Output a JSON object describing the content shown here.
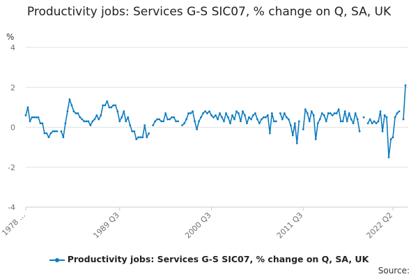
{
  "title": "Productivity jobs: Services G-S SIC07, % change on Q, SA, UK",
  "source_label": "Source:",
  "chart_data": {
    "type": "line",
    "title": "Productivity jobs: Services G-S SIC07, % change on Q, SA, UK",
    "ylabel": "%",
    "ylim": [
      -4,
      4
    ],
    "yticks": [
      4,
      2,
      0,
      -2,
      -4
    ],
    "x_tick_labels": [
      "1978 ...",
      "1989 Q3",
      "2000 Q3",
      "2011 Q3",
      "2022 Q2"
    ],
    "x_tick_positions": [
      0,
      45,
      89,
      133,
      176
    ],
    "grid": true,
    "legend_position": "bottom",
    "series": [
      {
        "name": "Productivity jobs: Services G-S SIC07, % change on Q, SA, UK",
        "color": "#0c7bbf",
        "values": [
          0.6,
          1.0,
          0.3,
          0.5,
          0.5,
          0.5,
          0.5,
          0.2,
          0.2,
          -0.3,
          -0.3,
          -0.5,
          -0.3,
          -0.2,
          -0.2,
          -0.2,
          null,
          -0.2,
          -0.5,
          0.2,
          0.8,
          1.4,
          1.1,
          0.8,
          0.7,
          0.7,
          0.5,
          0.4,
          0.3,
          0.3,
          0.3,
          0.1,
          0.3,
          0.4,
          0.6,
          0.4,
          0.6,
          1.1,
          1.1,
          1.3,
          1.0,
          1.0,
          1.1,
          1.1,
          0.8,
          0.3,
          0.5,
          0.8,
          0.3,
          0.5,
          0.1,
          -0.2,
          -0.2,
          -0.6,
          -0.5,
          -0.5,
          -0.5,
          0.1,
          -0.5,
          -0.3,
          null,
          0.1,
          0.3,
          0.4,
          0.4,
          0.3,
          0.3,
          0.7,
          0.4,
          0.4,
          0.5,
          0.5,
          0.3,
          0.3,
          null,
          0.1,
          0.2,
          0.4,
          0.7,
          0.7,
          0.8,
          0.3,
          -0.1,
          0.3,
          0.5,
          0.7,
          0.8,
          0.7,
          0.8,
          0.6,
          0.5,
          0.6,
          0.4,
          0.7,
          0.5,
          0.3,
          0.7,
          0.5,
          0.2,
          0.6,
          0.4,
          0.8,
          0.7,
          0.3,
          0.8,
          0.6,
          0.2,
          0.5,
          0.4,
          0.6,
          0.7,
          0.4,
          0.2,
          0.4,
          0.5,
          0.5,
          0.6,
          -0.3,
          0.7,
          0.3,
          0.3,
          null,
          0.7,
          0.4,
          0.7,
          0.5,
          0.4,
          0.1,
          -0.4,
          0.2,
          -0.8,
          0.3,
          null,
          -0.1,
          0.9,
          0.7,
          0.3,
          0.8,
          0.6,
          -0.6,
          0.2,
          0.4,
          0.7,
          0.6,
          0.3,
          0.7,
          0.7,
          0.6,
          0.7,
          0.7,
          0.9,
          0.3,
          0.3,
          0.8,
          0.3,
          0.7,
          0.4,
          0.2,
          0.7,
          0.4,
          -0.2,
          null,
          0.5,
          null,
          0.2,
          0.4,
          0.2,
          0.3,
          0.2,
          0.3,
          0.8,
          -0.2,
          0.6,
          0.5,
          -1.5,
          -0.6,
          -0.5,
          0.5,
          0.7,
          0.8,
          null,
          0.4,
          2.1
        ]
      }
    ]
  }
}
